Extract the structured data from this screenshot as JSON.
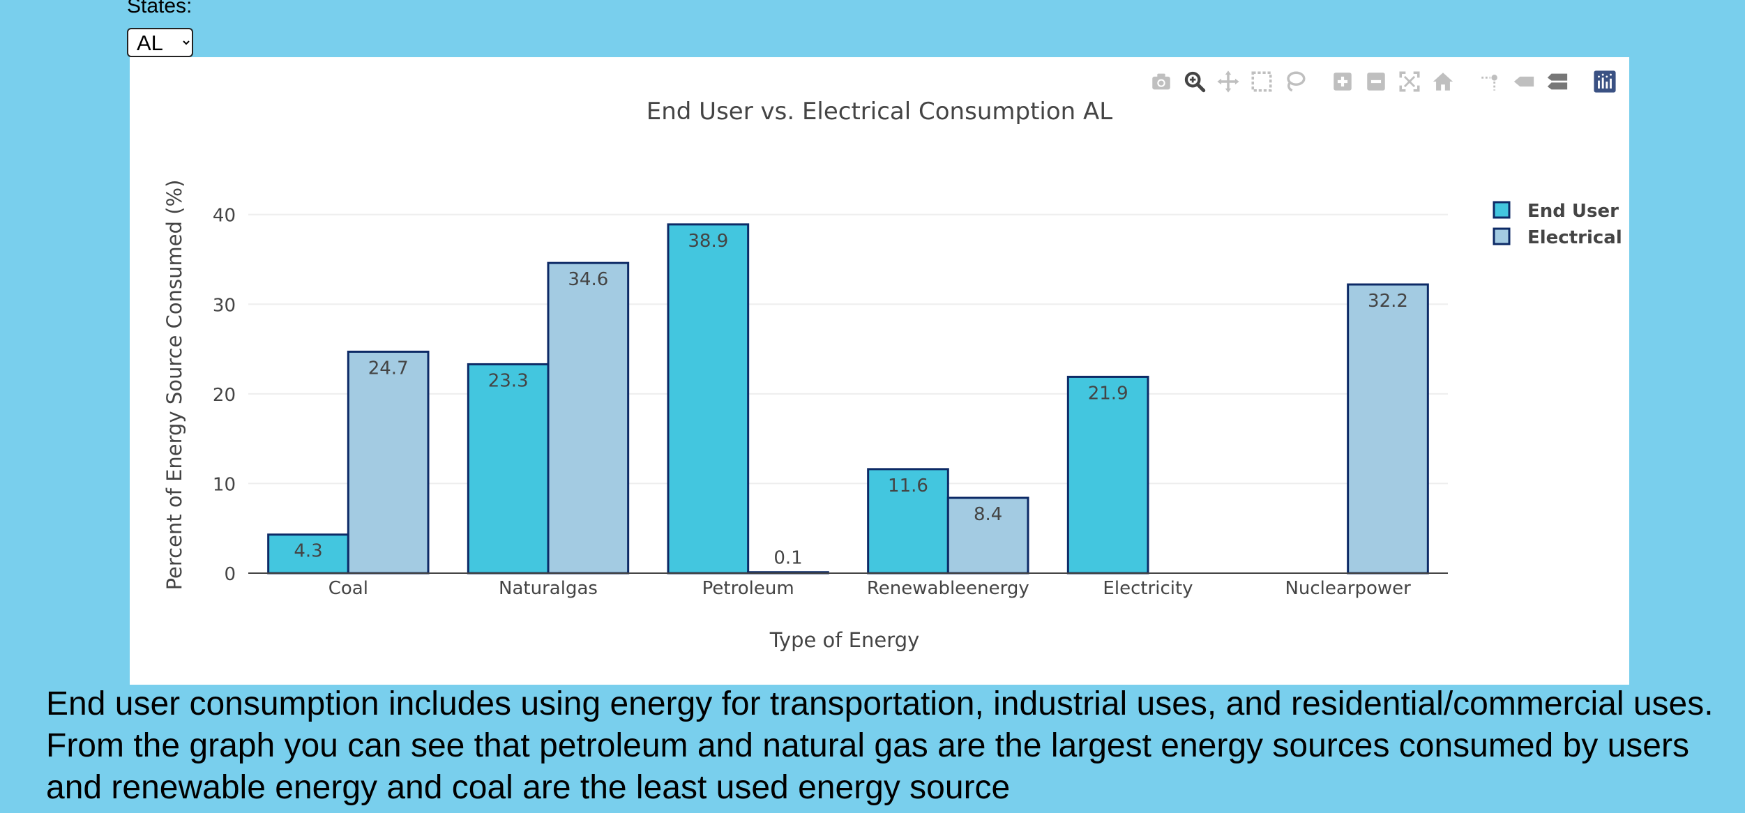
{
  "controls": {
    "states_label": "States:",
    "selected_state": "AL"
  },
  "modebar": [
    {
      "name": "download-png-icon",
      "title": "Download plot as a png"
    },
    {
      "name": "zoom-icon",
      "title": "Zoom"
    },
    {
      "name": "pan-icon",
      "title": "Pan"
    },
    {
      "name": "box-select-icon",
      "title": "Box Select"
    },
    {
      "name": "lasso-select-icon",
      "title": "Lasso Select"
    },
    {
      "name": "zoom-in-icon",
      "title": "Zoom in"
    },
    {
      "name": "zoom-out-icon",
      "title": "Zoom out"
    },
    {
      "name": "autoscale-icon",
      "title": "Autoscale"
    },
    {
      "name": "reset-axes-icon",
      "title": "Reset axes"
    },
    {
      "name": "spike-lines-icon",
      "title": "Toggle Spike Lines"
    },
    {
      "name": "hover-closest-icon",
      "title": "Show closest data on hover"
    },
    {
      "name": "hover-compare-icon",
      "title": "Compare data on hover"
    },
    {
      "name": "plotly-logo-icon",
      "title": "Produced with Plotly"
    }
  ],
  "chart_data": {
    "type": "bar",
    "title": "End User vs. Electrical Consumption AL",
    "xlabel": "Type of Energy",
    "ylabel": "Percent of Energy Source Consumed (%)",
    "categories": [
      "Coal",
      "Naturalgas",
      "Petroleum",
      "Renewableenergy",
      "Electricity",
      "Nuclearpower"
    ],
    "yticks": [
      0,
      10,
      20,
      30,
      40
    ],
    "ylim": [
      0,
      42
    ],
    "grid": true,
    "legend_position": "top-right",
    "series": [
      {
        "name": "End User",
        "color": "#43c6df",
        "values": [
          4.3,
          23.3,
          38.9,
          11.6,
          21.9,
          null
        ],
        "labels": [
          "4.3",
          "23.3",
          "38.9",
          "11.6",
          "21.9",
          ""
        ]
      },
      {
        "name": "Electrical",
        "color": "#a3cbe2",
        "values": [
          24.7,
          34.6,
          0.1,
          8.4,
          null,
          32.2
        ],
        "labels": [
          "24.7",
          "34.6",
          "0.1",
          "8.4",
          "",
          "32.2"
        ]
      }
    ],
    "bar_outline_color": "#0d2a66"
  },
  "caption": "End user consumption includes using energy for transportation, industrial uses, and residential/commercial uses. From the graph you can see that petroleum and natural gas are the largest energy sources consumed by users and renewable energy and coal are the least used energy source"
}
